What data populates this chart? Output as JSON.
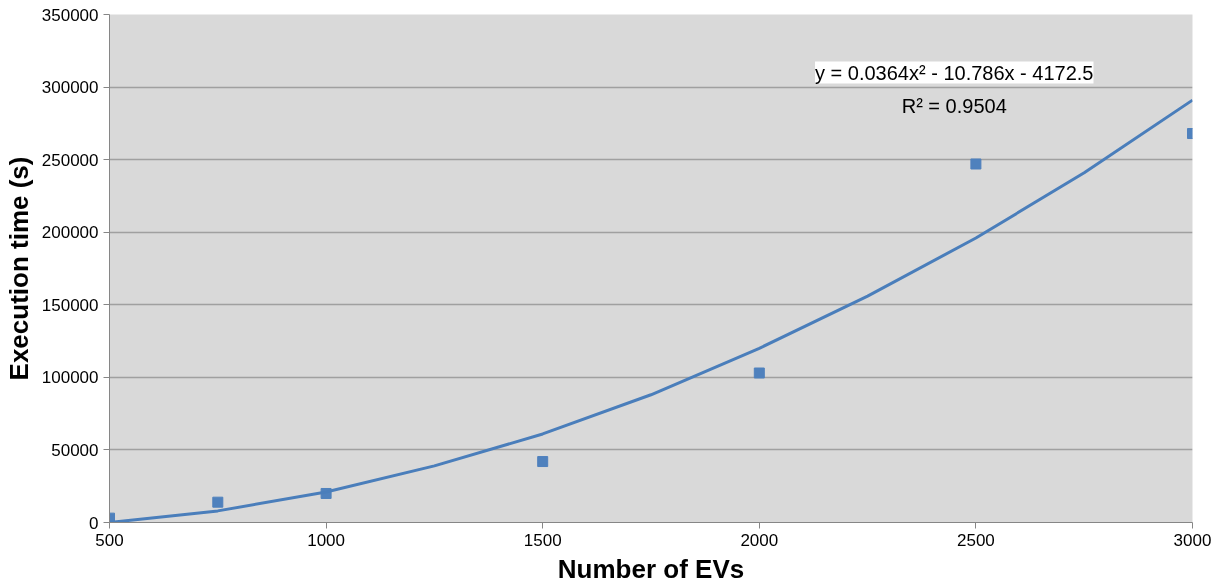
{
  "chart_data": {
    "type": "scatter",
    "xlabel": "Number of EVs",
    "ylabel": "Execution time (s)",
    "x": [
      500,
      750,
      1000,
      1500,
      2000,
      2500,
      3000
    ],
    "series": [
      {
        "color": "#4f81bd",
        "marker": "square",
        "values": [
          3000,
          14000,
          20000,
          42000,
          103000,
          247000,
          268000
        ]
      },
      {
        "type": "line",
        "marker": "none",
        "color": "#4a7ebb",
        "x": [
          500,
          750,
          1000,
          1250,
          1500,
          1750,
          2000,
          2250,
          2500,
          2750,
          3000
        ],
        "values": [
          0,
          8000,
          21000,
          39000,
          61000,
          88000,
          120000,
          156000,
          196000,
          241000,
          291000
        ]
      }
    ],
    "xlim": [
      500,
      3000
    ],
    "xticks": [
      500,
      1000,
      1500,
      2000,
      2500,
      3000
    ],
    "ylim": [
      0,
      350000
    ],
    "yticks": [
      0,
      50000,
      100000,
      150000,
      200000,
      250000,
      300000,
      350000
    ],
    "grid": "y",
    "annotations": [
      "y = 0.0364x² - 10.786x - 4172.5",
      "R² = 0.9504"
    ]
  }
}
